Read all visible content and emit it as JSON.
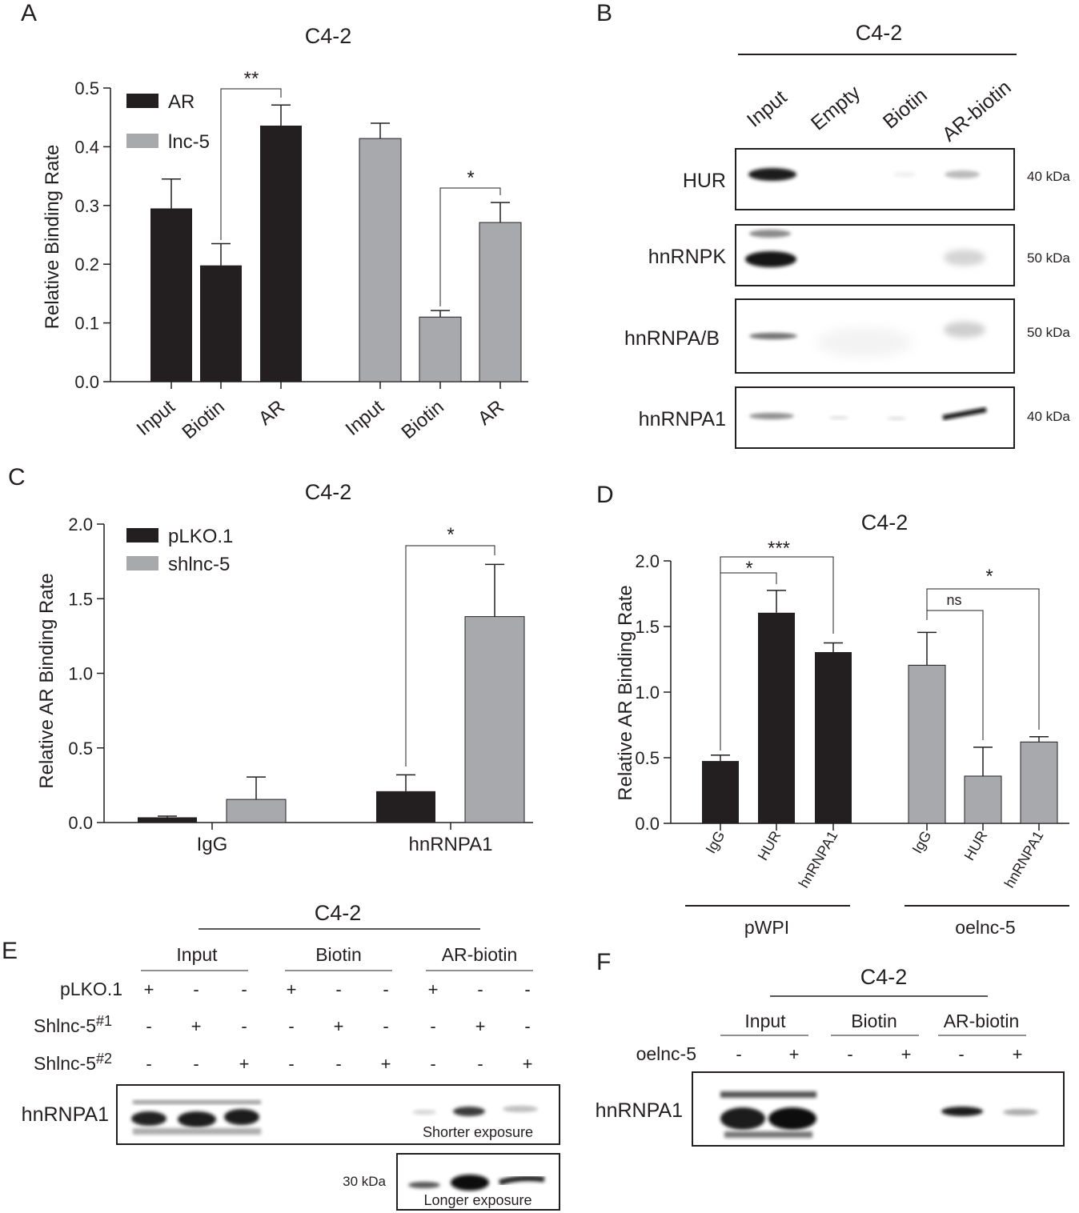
{
  "panels": {
    "A": {
      "letter": "A",
      "title": "C4-2",
      "chart_data": {
        "type": "bar",
        "title": "C4-2",
        "ylabel": "Relative Binding Rate",
        "ylim": [
          0,
          0.5
        ],
        "yticks": [
          "0.0",
          "0.1",
          "0.2",
          "0.3",
          "0.4",
          "0.5"
        ],
        "legend_position": "top-left",
        "series": [
          {
            "name": "AR",
            "color": "#231f20",
            "categories": [
              "Input",
              "Biotin",
              "AR"
            ],
            "values": [
              0.295,
              0.198,
              0.436
            ],
            "errors": [
              0.05,
              0.037,
              0.035
            ]
          },
          {
            "name": "lnc-5",
            "color": "#a7a9ac",
            "categories": [
              "Input",
              "Biotin",
              "AR"
            ],
            "values": [
              0.414,
              0.11,
              0.271
            ],
            "errors": [
              0.026,
              0.011,
              0.034
            ]
          }
        ],
        "annotations": [
          {
            "text": "**"
          },
          {
            "text": "*"
          }
        ]
      }
    },
    "B": {
      "letter": "B",
      "title": "C4-2",
      "lanes": [
        "Input",
        "Empty",
        "Biotin",
        "AR-biotin"
      ],
      "rows": [
        {
          "protein": "HUR",
          "kda": "40 kDa"
        },
        {
          "protein": "hnRNPK",
          "kda": "50 kDa"
        },
        {
          "protein": "hnRNPA/B",
          "kda": "50 kDa"
        },
        {
          "protein": "hnRNPA1",
          "kda": "40 kDa"
        }
      ]
    },
    "C": {
      "letter": "C",
      "title": "C4-2",
      "chart_data": {
        "type": "bar",
        "title": "C4-2",
        "ylabel": "Relative AR Binding Rate",
        "ylim": [
          0,
          2.0
        ],
        "yticks": [
          "0.0",
          "0.5",
          "1.0",
          "1.5",
          "2.0"
        ],
        "categories": [
          "IgG",
          "hnRNPA1"
        ],
        "legend_position": "top-left",
        "series": [
          {
            "name": "pLKO.1",
            "color": "#231f20",
            "values": [
              0.035,
              0.21
            ],
            "errors": [
              0.008,
              0.11
            ]
          },
          {
            "name": "shlnc-5",
            "color": "#a7a9ac",
            "values": [
              0.155,
              1.38
            ],
            "errors": [
              0.15,
              0.35
            ]
          }
        ],
        "annotations": [
          {
            "text": "*"
          }
        ]
      }
    },
    "D": {
      "letter": "D",
      "title": "C4-2",
      "chart_data": {
        "type": "bar",
        "title": "C4-2",
        "ylabel": "Relative AR Binding Rate",
        "ylim": [
          0,
          2.0
        ],
        "yticks": [
          "0.0",
          "0.5",
          "1.0",
          "1.5",
          "2.0"
        ],
        "groups": [
          "pWPI",
          "oelnc-5"
        ],
        "series": [
          {
            "name": "pWPI",
            "color": "#231f20",
            "categories": [
              "IgG",
              "HUR",
              "hnRNPA1"
            ],
            "values": [
              0.475,
              1.605,
              1.305
            ],
            "errors": [
              0.045,
              0.17,
              0.07
            ]
          },
          {
            "name": "oelnc-5",
            "color": "#a7a9ac",
            "categories": [
              "IgG",
              "HUR",
              "hnRNPA1"
            ],
            "values": [
              1.205,
              0.36,
              0.62
            ],
            "errors": [
              0.25,
              0.22,
              0.04
            ]
          }
        ],
        "annotations": [
          {
            "text": "*"
          },
          {
            "text": "***"
          },
          {
            "text": "ns"
          },
          {
            "text": "*"
          }
        ]
      }
    },
    "E": {
      "letter": "E",
      "title": "C4-2",
      "groups": [
        "Input",
        "Biotin",
        "AR-biotin"
      ],
      "row_labels": {
        "plko": "pLKO.1",
        "sh1_main": "Shlnc-5",
        "sh1_sup": "#1",
        "sh2_main": "Shlnc-5",
        "sh2_sup": "#2"
      },
      "signs": {
        "plko": [
          "+",
          "-",
          "-",
          "+",
          "-",
          "-",
          "+",
          "-",
          "-"
        ],
        "sh1": [
          "-",
          "+",
          "-",
          "-",
          "+",
          "-",
          "-",
          "+",
          "-"
        ],
        "sh2": [
          "-",
          "-",
          "+",
          "-",
          "-",
          "+",
          "-",
          "-",
          "+"
        ]
      },
      "blot_label": "hnRNPA1",
      "kda": "30 kDa",
      "shorter": "Shorter exposure",
      "longer": "Longer exposure"
    },
    "F": {
      "letter": "F",
      "title": "C4-2",
      "groups": [
        "Input",
        "Biotin",
        "AR-biotin"
      ],
      "row_label": "oelnc-5",
      "signs": [
        "-",
        "+",
        "-",
        "+",
        "-",
        "+"
      ],
      "blot_label": "hnRNPA1"
    }
  }
}
